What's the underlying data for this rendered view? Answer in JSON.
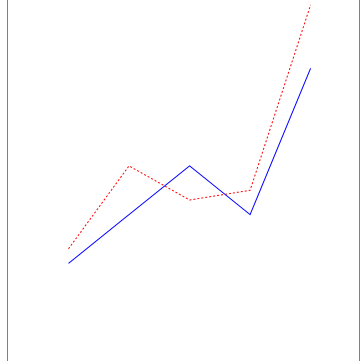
{
  "chart_data": {
    "type": "line",
    "x": [
      1,
      2,
      3,
      4,
      5
    ],
    "xlim": [
      0,
      5.8
    ],
    "ylim": [
      -1,
      6.4
    ],
    "grid": false,
    "series": [
      {
        "values": [
          1,
          2,
          3,
          2,
          5
        ],
        "color": "#0000ff",
        "style": "solid"
      },
      {
        "values": [
          1.3,
          3,
          2.3,
          2.5,
          6.3
        ],
        "color": "#ff0000",
        "style": "dotted"
      }
    ]
  }
}
